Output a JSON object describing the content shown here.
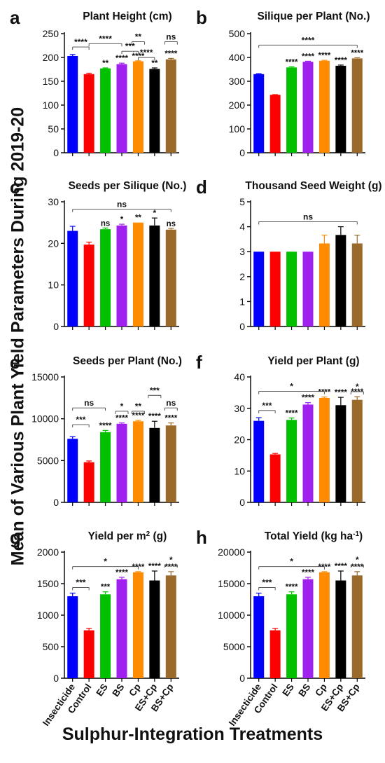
{
  "figure": {
    "ylabel": "Mean of Various Plant Yield Parameters During 2019-20",
    "xlabel": "Sulphur-Integration Treatments"
  },
  "colors": [
    "#0000ff",
    "#ff0000",
    "#00c000",
    "#a020f0",
    "#ff8c00",
    "#000000",
    "#9a6a2a"
  ],
  "chart_data": [
    {
      "type": "bar",
      "panel": "a",
      "title": "Plant Height (cm)",
      "title_sup": "",
      "categories": [
        "Insecticide",
        "Control",
        "ES",
        "BS",
        "Cp",
        "ES+Cp",
        "BS+Cp"
      ],
      "values": [
        203,
        165,
        177,
        186,
        192,
        176,
        196
      ],
      "errors": [
        3,
        2,
        1,
        2,
        1,
        2,
        2
      ],
      "ylim": [
        0,
        250
      ],
      "yticks": [
        0,
        50,
        100,
        150,
        200,
        250
      ],
      "show_xticklabels": false,
      "bar_labels": [
        "",
        "",
        "**",
        "****",
        "****",
        "**",
        "****"
      ],
      "brackets": [
        {
          "from": 0,
          "to": 1,
          "y": 222,
          "label": "****"
        },
        {
          "from": 1,
          "to": 3,
          "y": 229,
          "label": "****"
        },
        {
          "from": 3,
          "to": 4,
          "y": 213,
          "label": "***"
        },
        {
          "from": 4,
          "to": 4,
          "y": 233,
          "label": "**"
        },
        {
          "from": 4,
          "to": 5,
          "y": 200,
          "label": "****"
        },
        {
          "from": 6,
          "to": 6,
          "y": 233,
          "label": "ns"
        }
      ]
    },
    {
      "type": "bar",
      "panel": "b",
      "title": "Silique per Plant (No.)",
      "title_sup": "",
      "categories": [
        "Insecticide",
        "Control",
        "ES",
        "BS",
        "Cp",
        "ES+Cp",
        "BS+Cp"
      ],
      "values": [
        330,
        243,
        358,
        382,
        386,
        365,
        396
      ],
      "errors": [
        2,
        1,
        3,
        2,
        2,
        3,
        3
      ],
      "ylim": [
        0,
        500
      ],
      "yticks": [
        0,
        100,
        200,
        300,
        400,
        500
      ],
      "show_xticklabels": false,
      "bar_labels": [
        "",
        "",
        "****",
        "****",
        "****",
        "****",
        "****"
      ],
      "brackets": [
        {
          "from": 0,
          "to": 6,
          "y": 452,
          "label": "****"
        }
      ]
    },
    {
      "type": "bar",
      "panel": "c",
      "title": "Seeds per Silique (No.)",
      "title_sup": "",
      "categories": [
        "Insecticide",
        "Control",
        "ES",
        "BS",
        "Cp",
        "ES+Cp",
        "BS+Cp"
      ],
      "values": [
        23.0,
        19.7,
        23.4,
        24.3,
        25.0,
        24.3,
        23.3
      ],
      "errors": [
        1.1,
        0.6,
        0.3,
        0.3,
        0.0,
        1.8,
        0.3
      ],
      "ylim": [
        0,
        30
      ],
      "yticks": [
        0,
        10,
        20,
        30
      ],
      "show_xticklabels": false,
      "bar_labels": [
        "",
        "",
        "ns",
        "*",
        "**",
        "*",
        "ns"
      ],
      "brackets": [
        {
          "from": 0,
          "to": 6,
          "y": 28.2,
          "label": "ns"
        }
      ]
    },
    {
      "type": "bar",
      "panel": "d",
      "title": "Thousand Seed Weight (g)",
      "title_sup": "",
      "categories": [
        "Insecticide",
        "Control",
        "ES",
        "BS",
        "Cp",
        "ES+Cp",
        "BS+Cp"
      ],
      "values": [
        3.0,
        3.0,
        3.0,
        3.0,
        3.33,
        3.67,
        3.33
      ],
      "errors": [
        0.0,
        0.0,
        0.0,
        0.0,
        0.33,
        0.33,
        0.33
      ],
      "ylim": [
        0,
        5
      ],
      "yticks": [
        0,
        1,
        2,
        3,
        4,
        5
      ],
      "show_xticklabels": false,
      "bar_labels": [
        "",
        "",
        "",
        "",
        "",
        "",
        ""
      ],
      "brackets": [
        {
          "from": 0,
          "to": 6,
          "y": 4.2,
          "label": "ns"
        }
      ]
    },
    {
      "type": "bar",
      "panel": "e",
      "title": "Seeds per Plant (No.)",
      "title_sup": "",
      "categories": [
        "Insecticide",
        "Control",
        "ES",
        "BS",
        "Cp",
        "ES+Cp",
        "BS+Cp"
      ],
      "values": [
        7600,
        4800,
        8400,
        9400,
        9700,
        8900,
        9200
      ],
      "errors": [
        250,
        150,
        200,
        100,
        100,
        800,
        300
      ],
      "ylim": [
        0,
        15000
      ],
      "yticks": [
        0,
        5000,
        10000,
        15000
      ],
      "show_xticklabels": false,
      "bar_labels": [
        "",
        "",
        "****",
        "****",
        "****",
        "****",
        "****"
      ],
      "brackets": [
        {
          "from": 0,
          "to": 1,
          "y": 9300,
          "label": "***"
        },
        {
          "from": 0,
          "to": 2,
          "y": 11300,
          "label": "ns"
        },
        {
          "from": 3,
          "to": 3,
          "y": 10900,
          "label": "*"
        },
        {
          "from": 4,
          "to": 4,
          "y": 10900,
          "label": "**"
        },
        {
          "from": 5,
          "to": 5,
          "y": 12800,
          "label": "***"
        },
        {
          "from": 6,
          "to": 6,
          "y": 11300,
          "label": "ns"
        }
      ]
    },
    {
      "type": "bar",
      "panel": "f",
      "title": "Yield per Plant (g)",
      "title_sup": "",
      "categories": [
        "Insecticide",
        "Control",
        "ES",
        "BS",
        "Cp",
        "ES+Cp",
        "BS+Cp"
      ],
      "values": [
        26.0,
        15.3,
        26.3,
        31.2,
        33.3,
        31.0,
        32.7
      ],
      "errors": [
        1.0,
        0.3,
        0.6,
        0.6,
        0.3,
        2.5,
        1.0
      ],
      "ylim": [
        0,
        40
      ],
      "yticks": [
        0,
        10,
        20,
        30,
        40
      ],
      "show_xticklabels": false,
      "bar_labels": [
        "",
        "",
        "****",
        "****",
        "****",
        "****",
        "****"
      ],
      "brackets": [
        {
          "from": 0,
          "to": 1,
          "y": 29.3,
          "label": "***"
        },
        {
          "from": 0,
          "to": 4,
          "y": 35.4,
          "label": "*"
        },
        {
          "from": 6,
          "to": 6,
          "y": 35.3,
          "label": "*"
        }
      ]
    },
    {
      "type": "bar",
      "panel": "g",
      "title": "Yield per m",
      "title_sup": "2",
      "title_suffix": " (g)",
      "categories": [
        "Insecticide",
        "Control",
        "ES",
        "BS",
        "Cp",
        "ES+Cp",
        "BS+Cp"
      ],
      "values": [
        1300,
        760,
        1330,
        1570,
        1680,
        1550,
        1630
      ],
      "errors": [
        50,
        30,
        40,
        30,
        10,
        150,
        60
      ],
      "ylim": [
        0,
        2000
      ],
      "yticks": [
        0,
        500,
        1000,
        1500,
        2000
      ],
      "show_xticklabels": true,
      "bar_labels": [
        "",
        "",
        "***",
        "****",
        "****",
        "****",
        "****"
      ],
      "brackets": [
        {
          "from": 0,
          "to": 1,
          "y": 1440,
          "label": "***"
        },
        {
          "from": 0,
          "to": 4,
          "y": 1770,
          "label": "*"
        },
        {
          "from": 6,
          "to": 6,
          "y": 1800,
          "label": "*"
        }
      ]
    },
    {
      "type": "bar",
      "panel": "h",
      "title": "Total Yield (kg ha",
      "title_sup": "-1",
      "title_suffix": ")",
      "categories": [
        "Insecticide",
        "Control",
        "ES",
        "BS",
        "Cp",
        "ES+Cp",
        "BS+Cp"
      ],
      "values": [
        13000,
        7600,
        13300,
        15700,
        16800,
        15500,
        16300
      ],
      "errors": [
        500,
        300,
        400,
        300,
        100,
        1500,
        600
      ],
      "ylim": [
        0,
        20000
      ],
      "yticks": [
        0,
        5000,
        10000,
        15000,
        20000
      ],
      "show_xticklabels": true,
      "bar_labels": [
        "",
        "",
        "****",
        "****",
        "****",
        "****",
        "****"
      ],
      "brackets": [
        {
          "from": 0,
          "to": 1,
          "y": 14400,
          "label": "***"
        },
        {
          "from": 0,
          "to": 4,
          "y": 17700,
          "label": "*"
        },
        {
          "from": 6,
          "to": 6,
          "y": 18000,
          "label": "*"
        }
      ]
    }
  ]
}
